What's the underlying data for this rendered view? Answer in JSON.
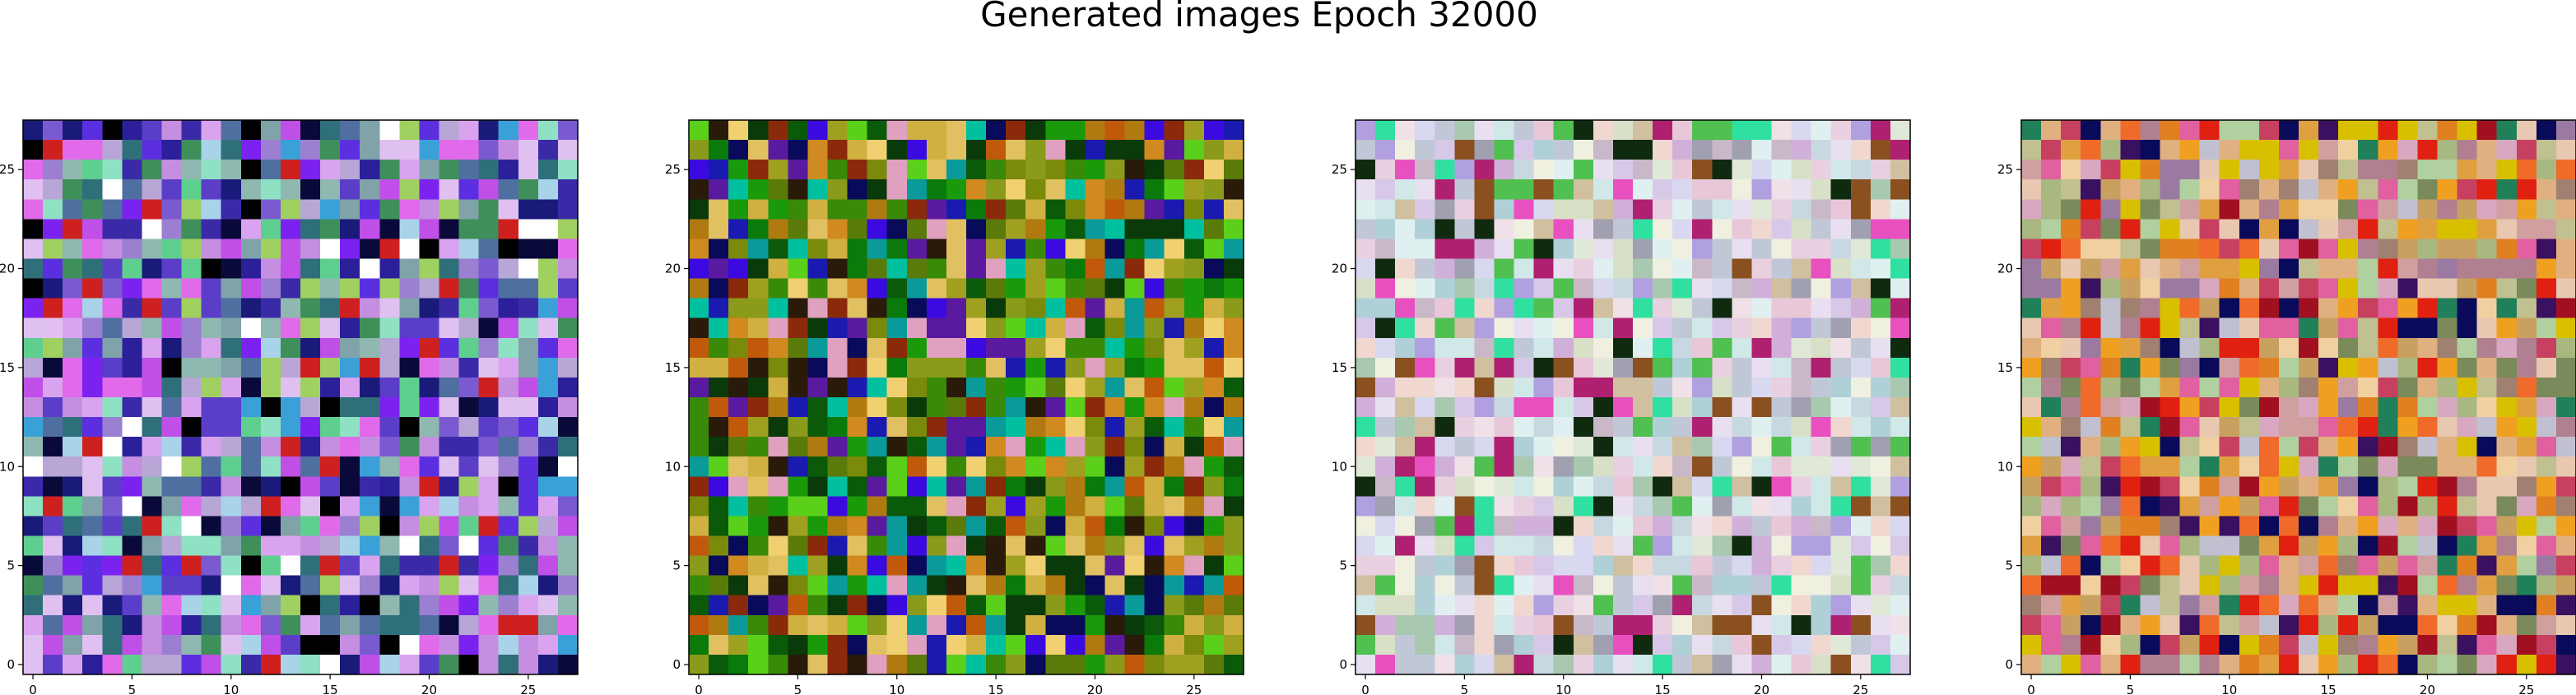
{
  "figure": {
    "title": "Generated images Epoch 32000"
  },
  "chart_data": {
    "type": "heatmap",
    "title": "Generated images Epoch 32000",
    "panels": [
      {
        "name": "",
        "grid_size": 28,
        "x_ticks": [
          0,
          5,
          10,
          15,
          20,
          25
        ],
        "y_ticks": [
          0,
          5,
          10,
          15,
          20,
          25
        ],
        "xlim": [
          -0.5,
          27.5
        ],
        "ylim": [
          27.5,
          -0.5
        ],
        "grid": false,
        "palette": [
          "#8fb8b0",
          "#7fa3a8",
          "#b7a6d6",
          "#9b7fd1",
          "#c58ee0",
          "#7a5ad0",
          "#5a3ec8",
          "#3a2aa8",
          "#2b1f9a",
          "#5b2fe0",
          "#7c22f0",
          "#c04fe8",
          "#e06ae9",
          "#d9a3ef",
          "#a8d3e8",
          "#8fe1c4",
          "#5fcf8f",
          "#3f8f5a",
          "#2f6f7a",
          "#4f6fa0",
          "#1a1a7a",
          "#0a0a3a",
          "#000000",
          "#ffffff",
          "#3aa0d8",
          "#cf2020",
          "#a0d060",
          "#e0c0f0"
        ],
        "mean_color": "#8a6fc8"
      },
      {
        "name": "",
        "grid_size": 28,
        "x_ticks": [
          0,
          5,
          10,
          15,
          20,
          25
        ],
        "y_ticks": [
          0,
          5,
          10,
          15,
          20,
          25
        ],
        "xlim": [
          -0.5,
          27.5
        ],
        "ylim": [
          27.5,
          -0.5
        ],
        "grid": false,
        "palette": [
          "#8a9a1a",
          "#b07a10",
          "#c05a0a",
          "#d08a20",
          "#a0a020",
          "#7a8a0a",
          "#5a7a0a",
          "#3a8a0a",
          "#1a9a0a",
          "#0a7a0a",
          "#0a5a0a",
          "#0a3a0a",
          "#2a1a0a",
          "#8a2a0a",
          "#5a1aa0",
          "#3a0ae0",
          "#1a1ab0",
          "#0a0a5a",
          "#e0a0c0",
          "#5ad01a",
          "#d0b040",
          "#e0c060",
          "#00c0a0",
          "#f0d070",
          "#0a9a9a"
        ],
        "mean_color": "#7a7a14"
      },
      {
        "name": "",
        "grid_size": 28,
        "x_ticks": [
          0,
          5,
          10,
          15,
          20,
          25
        ],
        "y_ticks": [
          0,
          5,
          10,
          15,
          20,
          25
        ],
        "xlim": [
          -0.5,
          27.5
        ],
        "ylim": [
          27.5,
          -0.5
        ],
        "grid": false,
        "palette": [
          "#e8dff0",
          "#d8c8e8",
          "#c8d8e0",
          "#e0e8d8",
          "#f0e0e8",
          "#d0e8e8",
          "#e8d0e0",
          "#c0c8d8",
          "#d8e0c8",
          "#e8c8d8",
          "#b0d0d8",
          "#d0b0d8",
          "#e0f0f0",
          "#c8b8c8",
          "#a8c8b0",
          "#f0d8d0",
          "#d8d8f0",
          "#e850c0",
          "#b02070",
          "#8a5020",
          "#30e0a0",
          "#50c050",
          "#102a10",
          "#b0a0e0",
          "#f0f0e0",
          "#a0a0b0",
          "#d0c0a0"
        ],
        "mean_color": "#d6d2e0"
      },
      {
        "name": "",
        "grid_size": 28,
        "x_ticks": [
          0,
          5,
          10,
          15,
          20,
          25
        ],
        "y_ticks": [
          0,
          5,
          10,
          15,
          20,
          25
        ],
        "xlim": [
          -0.5,
          27.5
        ],
        "ylim": [
          27.5,
          -0.5
        ],
        "grid": false,
        "palette": [
          "#d0a0a0",
          "#e0b080",
          "#c8a060",
          "#e0a040",
          "#d8c000",
          "#e08020",
          "#f0a020",
          "#e02010",
          "#a01020",
          "#c84060",
          "#b08090",
          "#d8a8c0",
          "#c0c090",
          "#a8b880",
          "#e8c8b0",
          "#9a7aa0",
          "#7a8a5a",
          "#f06a2a",
          "#3a1060",
          "#0a0a5a",
          "#e060a0",
          "#c0c0d0",
          "#b0d0a0",
          "#20805a",
          "#f0d0a0",
          "#a08070"
        ],
        "mean_color": "#c69070"
      }
    ]
  }
}
